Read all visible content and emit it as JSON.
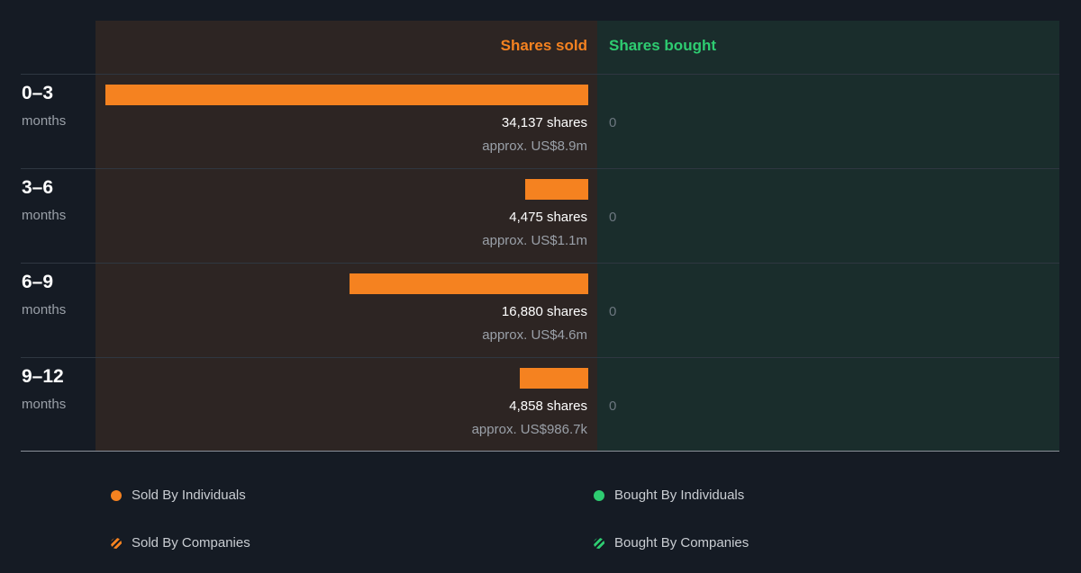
{
  "header": {
    "sold_label": "Shares sold",
    "bought_label": "Shares bought"
  },
  "colors": {
    "sold": "#f58220",
    "bought": "#2ecc71",
    "sold_panel": "#2d2523",
    "bought_panel": "#1a2d2c"
  },
  "rows": [
    {
      "period": "0–3",
      "unit": "months",
      "sold_text": "34,137 shares",
      "sold_value": "approx. US$8.9m",
      "bought_text": "0"
    },
    {
      "period": "3–6",
      "unit": "months",
      "sold_text": "4,475 shares",
      "sold_value": "approx. US$1.1m",
      "bought_text": "0"
    },
    {
      "period": "6–9",
      "unit": "months",
      "sold_text": "16,880 shares",
      "sold_value": "approx. US$4.6m",
      "bought_text": "0"
    },
    {
      "period": "9–12",
      "unit": "months",
      "sold_text": "4,858 shares",
      "sold_value": "approx. US$986.7k",
      "bought_text": "0"
    }
  ],
  "legend": {
    "sold_individuals": "Sold By Individuals",
    "bought_individuals": "Bought By Individuals",
    "sold_companies": "Sold By Companies",
    "bought_companies": "Bought By Companies"
  },
  "chart_data": {
    "type": "bar",
    "orientation": "horizontal-diverging",
    "categories": [
      "0–3 months",
      "3–6 months",
      "6–9 months",
      "9–12 months"
    ],
    "series": [
      {
        "name": "Shares sold",
        "values": [
          34137,
          4475,
          16880,
          4858
        ],
        "usd_approx": [
          8900000,
          1100000,
          4600000,
          986700
        ]
      },
      {
        "name": "Shares bought",
        "values": [
          0,
          0,
          0,
          0
        ]
      }
    ],
    "legend": [
      "Sold By Individuals",
      "Bought By Individuals",
      "Sold By Companies",
      "Bought By Companies"
    ],
    "legend_position": "bottom"
  }
}
